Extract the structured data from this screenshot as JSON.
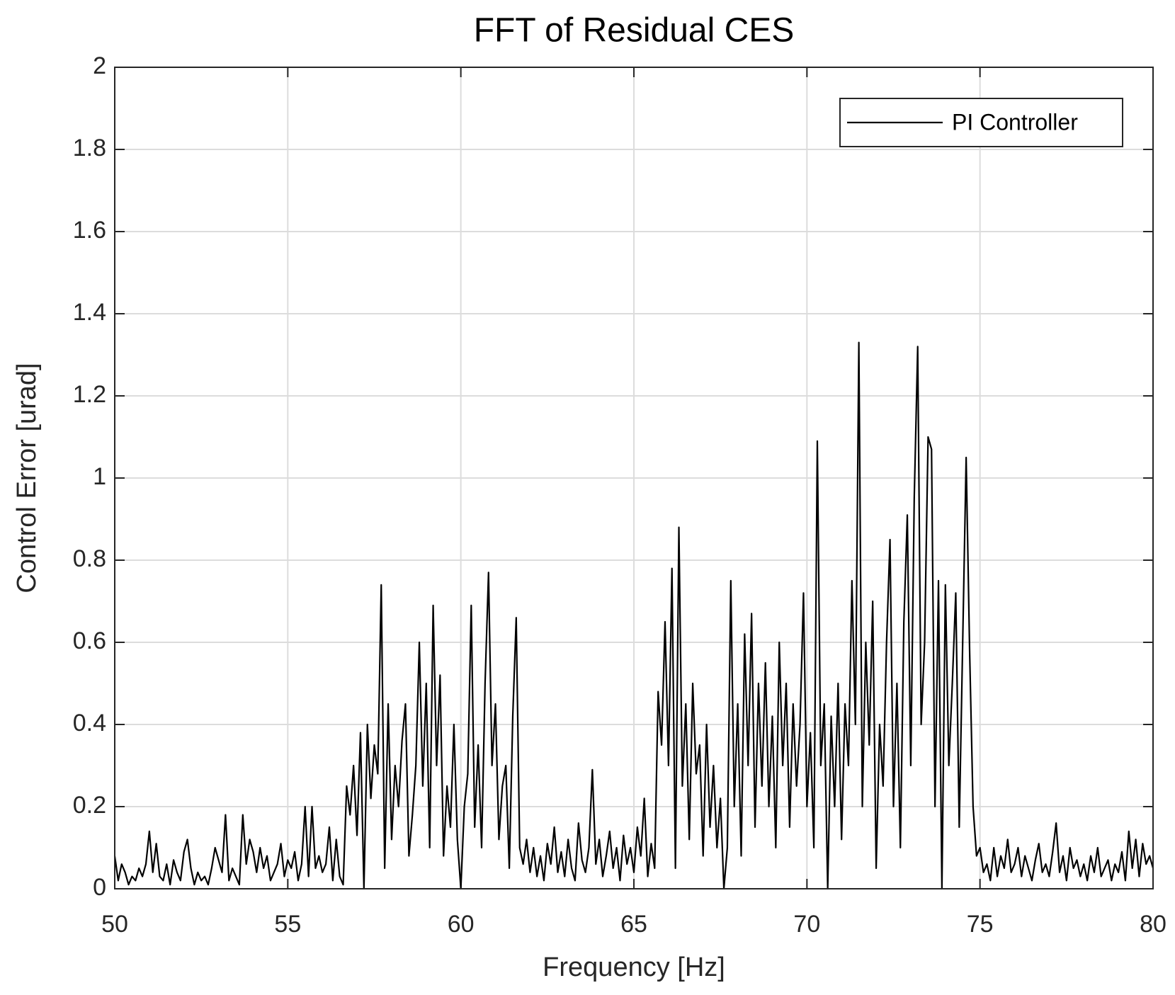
{
  "chart_data": {
    "type": "line",
    "title": "FFT of Residual CES",
    "xlabel": "Frequency [Hz]",
    "ylabel": "Control Error [urad]",
    "x": [
      50.0,
      50.1,
      50.2,
      50.3,
      50.4,
      50.5,
      50.6,
      50.7,
      50.8,
      50.9,
      51.0,
      51.1,
      51.2,
      51.3,
      51.4,
      51.5,
      51.6,
      51.7,
      51.8,
      51.9,
      52.0,
      52.1,
      52.2,
      52.3,
      52.4,
      52.5,
      52.6,
      52.7,
      52.8,
      52.9,
      53.0,
      53.1,
      53.2,
      53.3,
      53.4,
      53.5,
      53.6,
      53.7,
      53.8,
      53.9,
      54.0,
      54.1,
      54.2,
      54.3,
      54.4,
      54.5,
      54.6,
      54.7,
      54.8,
      54.9,
      55.0,
      55.1,
      55.2,
      55.3,
      55.4,
      55.5,
      55.6,
      55.7,
      55.8,
      55.9,
      56.0,
      56.1,
      56.2,
      56.3,
      56.4,
      56.5,
      56.6,
      56.7,
      56.8,
      56.9,
      57.0,
      57.1,
      57.2,
      57.3,
      57.4,
      57.5,
      57.6,
      57.7,
      57.8,
      57.9,
      58.0,
      58.1,
      58.2,
      58.3,
      58.4,
      58.5,
      58.6,
      58.7,
      58.8,
      58.9,
      59.0,
      59.1,
      59.2,
      59.3,
      59.4,
      59.5,
      59.6,
      59.7,
      59.8,
      59.9,
      60.0,
      60.1,
      60.2,
      60.3,
      60.4,
      60.5,
      60.6,
      60.7,
      60.8,
      60.9,
      61.0,
      61.1,
      61.2,
      61.3,
      61.4,
      61.5,
      61.6,
      61.7,
      61.8,
      61.9,
      62.0,
      62.1,
      62.2,
      62.3,
      62.4,
      62.5,
      62.6,
      62.7,
      62.8,
      62.9,
      63.0,
      63.1,
      63.2,
      63.3,
      63.4,
      63.5,
      63.6,
      63.7,
      63.8,
      63.9,
      64.0,
      64.1,
      64.2,
      64.3,
      64.4,
      64.5,
      64.6,
      64.7,
      64.8,
      64.9,
      65.0,
      65.1,
      65.2,
      65.3,
      65.4,
      65.5,
      65.6,
      65.7,
      65.8,
      65.9,
      66.0,
      66.1,
      66.2,
      66.3,
      66.4,
      66.5,
      66.6,
      66.7,
      66.8,
      66.9,
      67.0,
      67.1,
      67.2,
      67.3,
      67.4,
      67.5,
      67.6,
      67.7,
      67.8,
      67.9,
      68.0,
      68.1,
      68.2,
      68.3,
      68.4,
      68.5,
      68.6,
      68.7,
      68.8,
      68.9,
      69.0,
      69.1,
      69.2,
      69.3,
      69.4,
      69.5,
      69.6,
      69.7,
      69.8,
      69.9,
      70.0,
      70.1,
      70.2,
      70.3,
      70.4,
      70.5,
      70.6,
      70.7,
      70.8,
      70.9,
      71.0,
      71.1,
      71.2,
      71.3,
      71.4,
      71.5,
      71.6,
      71.7,
      71.8,
      71.9,
      72.0,
      72.1,
      72.2,
      72.3,
      72.4,
      72.5,
      72.6,
      72.7,
      72.8,
      72.9,
      73.0,
      73.1,
      73.2,
      73.3,
      73.4,
      73.5,
      73.6,
      73.7,
      73.8,
      73.9,
      74.0,
      74.1,
      74.2,
      74.3,
      74.4,
      74.5,
      74.6,
      74.7,
      74.8,
      74.9,
      75.0,
      75.1,
      75.2,
      75.3,
      75.4,
      75.5,
      75.6,
      75.7,
      75.8,
      75.9,
      76.0,
      76.1,
      76.2,
      76.3,
      76.4,
      76.5,
      76.6,
      76.7,
      76.8,
      76.9,
      77.0,
      77.1,
      77.2,
      77.3,
      77.4,
      77.5,
      77.6,
      77.7,
      77.8,
      77.9,
      78.0,
      78.1,
      78.2,
      78.3,
      78.4,
      78.5,
      78.6,
      78.7,
      78.8,
      78.9,
      79.0,
      79.1,
      79.2,
      79.3,
      79.4,
      79.5,
      79.6,
      79.7,
      79.8,
      79.9,
      80.0
    ],
    "series": [
      {
        "name": "PI Controller",
        "color": "#000000",
        "values": [
          0.08,
          0.02,
          0.06,
          0.04,
          0.01,
          0.03,
          0.02,
          0.05,
          0.03,
          0.06,
          0.14,
          0.04,
          0.11,
          0.03,
          0.02,
          0.06,
          0.01,
          0.07,
          0.04,
          0.02,
          0.09,
          0.12,
          0.05,
          0.01,
          0.04,
          0.02,
          0.03,
          0.01,
          0.05,
          0.1,
          0.07,
          0.04,
          0.18,
          0.02,
          0.05,
          0.03,
          0.01,
          0.18,
          0.06,
          0.12,
          0.09,
          0.04,
          0.1,
          0.05,
          0.08,
          0.02,
          0.04,
          0.06,
          0.11,
          0.03,
          0.07,
          0.05,
          0.09,
          0.02,
          0.06,
          0.2,
          0.03,
          0.2,
          0.05,
          0.08,
          0.04,
          0.06,
          0.15,
          0.02,
          0.12,
          0.03,
          0.01,
          0.25,
          0.18,
          0.3,
          0.13,
          0.38,
          0.0,
          0.4,
          0.22,
          0.35,
          0.28,
          0.74,
          0.05,
          0.45,
          0.12,
          0.3,
          0.2,
          0.36,
          0.45,
          0.08,
          0.18,
          0.3,
          0.6,
          0.25,
          0.5,
          0.1,
          0.69,
          0.3,
          0.52,
          0.08,
          0.25,
          0.15,
          0.4,
          0.12,
          0.0,
          0.2,
          0.28,
          0.69,
          0.15,
          0.35,
          0.1,
          0.5,
          0.77,
          0.3,
          0.45,
          0.12,
          0.25,
          0.3,
          0.05,
          0.42,
          0.66,
          0.1,
          0.06,
          0.12,
          0.04,
          0.1,
          0.03,
          0.08,
          0.02,
          0.11,
          0.06,
          0.15,
          0.04,
          0.09,
          0.03,
          0.12,
          0.05,
          0.02,
          0.16,
          0.07,
          0.04,
          0.1,
          0.29,
          0.06,
          0.12,
          0.03,
          0.08,
          0.14,
          0.05,
          0.1,
          0.02,
          0.13,
          0.06,
          0.1,
          0.04,
          0.15,
          0.08,
          0.22,
          0.03,
          0.11,
          0.05,
          0.48,
          0.35,
          0.65,
          0.3,
          0.78,
          0.05,
          0.88,
          0.25,
          0.45,
          0.12,
          0.5,
          0.28,
          0.35,
          0.08,
          0.4,
          0.15,
          0.3,
          0.1,
          0.22,
          0.0,
          0.1,
          0.75,
          0.2,
          0.45,
          0.08,
          0.62,
          0.3,
          0.67,
          0.15,
          0.5,
          0.25,
          0.55,
          0.2,
          0.42,
          0.1,
          0.6,
          0.3,
          0.5,
          0.15,
          0.45,
          0.25,
          0.4,
          0.72,
          0.2,
          0.38,
          0.1,
          1.09,
          0.3,
          0.45,
          0.0,
          0.42,
          0.2,
          0.5,
          0.12,
          0.45,
          0.3,
          0.75,
          0.4,
          1.33,
          0.2,
          0.6,
          0.35,
          0.7,
          0.05,
          0.4,
          0.25,
          0.6,
          0.85,
          0.2,
          0.5,
          0.1,
          0.65,
          0.91,
          0.3,
          0.95,
          1.32,
          0.4,
          0.6,
          1.1,
          1.07,
          0.2,
          0.75,
          0.0,
          0.74,
          0.3,
          0.5,
          0.72,
          0.15,
          0.6,
          1.05,
          0.58,
          0.2,
          0.08,
          0.1,
          0.04,
          0.06,
          0.02,
          0.1,
          0.03,
          0.08,
          0.05,
          0.12,
          0.04,
          0.06,
          0.1,
          0.03,
          0.08,
          0.05,
          0.02,
          0.07,
          0.11,
          0.04,
          0.06,
          0.03,
          0.09,
          0.16,
          0.04,
          0.08,
          0.02,
          0.1,
          0.05,
          0.07,
          0.03,
          0.06,
          0.02,
          0.08,
          0.04,
          0.1,
          0.03,
          0.05,
          0.07,
          0.02,
          0.06,
          0.04,
          0.09,
          0.02,
          0.14,
          0.05,
          0.12,
          0.03,
          0.11,
          0.06,
          0.08,
          0.05
        ]
      }
    ],
    "xlim": [
      50,
      80
    ],
    "xticks": [
      50,
      55,
      60,
      65,
      70,
      75,
      80
    ],
    "ylim": [
      0,
      2
    ],
    "yticks": [
      0,
      0.2,
      0.4,
      0.6,
      0.8,
      1,
      1.2,
      1.4,
      1.6,
      1.8,
      2
    ],
    "grid": true,
    "legend": "upper right"
  }
}
